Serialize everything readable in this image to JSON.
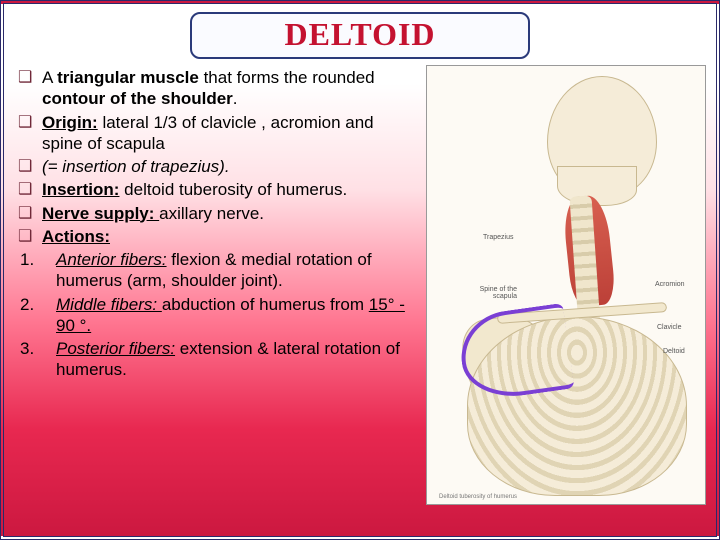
{
  "title": "DELTOID",
  "bullets": [
    {
      "parts": [
        {
          "t": "A ",
          "b": false
        },
        {
          "t": "triangular muscle ",
          "b": true
        },
        {
          "t": "that forms the rounded ",
          "b": false
        },
        {
          "t": "contour of the shoulder",
          "b": true
        },
        {
          "t": ".",
          "b": false
        }
      ]
    },
    {
      "parts": [
        {
          "t": "Origin:",
          "b": true,
          "u": true
        },
        {
          "t": " lateral 1/3 of clavicle , acromion and spine of scapula",
          "b": false
        }
      ]
    },
    {
      "parts": [
        {
          "t": "(= insertion of trapezius).",
          "i": true
        }
      ]
    },
    {
      "parts": [
        {
          "t": "Insertion:",
          "b": true,
          "u": true
        },
        {
          "t": " deltoid tuberosity of humerus.",
          "b": false
        }
      ]
    },
    {
      "parts": [
        {
          "t": "Nerve supply: ",
          "b": true,
          "u": true
        },
        {
          "t": "axillary nerve.",
          "b": false
        }
      ]
    },
    {
      "parts": [
        {
          "t": "Actions:",
          "b": true,
          "u": true
        }
      ]
    }
  ],
  "actions": [
    {
      "num": "1.",
      "parts": [
        {
          "t": "Anterior fibers:",
          "u": true,
          "i": true
        },
        {
          "t": " flexion & medial rotation of humerus (arm, shoulder joint)."
        }
      ]
    },
    {
      "num": "2.",
      "parts": [
        {
          "t": "Middle fibers: ",
          "u": true,
          "i": true
        },
        {
          "t": "abduction of humerus from "
        },
        {
          "t": "15° - 90 °.",
          "u": true
        }
      ]
    },
    {
      "num": "3.",
      "parts": [
        {
          "t": "Posterior fibers:",
          "u": true,
          "i": true
        },
        {
          "t": " extension & lateral rotation of humerus."
        }
      ]
    }
  ],
  "anatomy_labels": {
    "trapezius": "Trapezius",
    "spine_scapula": "Spine of the scapula",
    "acromion": "Acromion",
    "clavicle": "Clavicle",
    "deltoid": "Deltoid",
    "caption": "Deltoid tuberosity of humerus"
  },
  "style": {
    "title_color": "#c41230",
    "title_border": "#2a3a7a",
    "bullet_glyph_color": "#702838",
    "outline_color": "#7a3fd4",
    "background_gradient": [
      "#ffffff",
      "#ffe0e5",
      "#ff7590",
      "#e82850",
      "#cc1840"
    ],
    "title_fontsize": 32,
    "body_fontsize": 17,
    "label_fontsize": 7
  }
}
